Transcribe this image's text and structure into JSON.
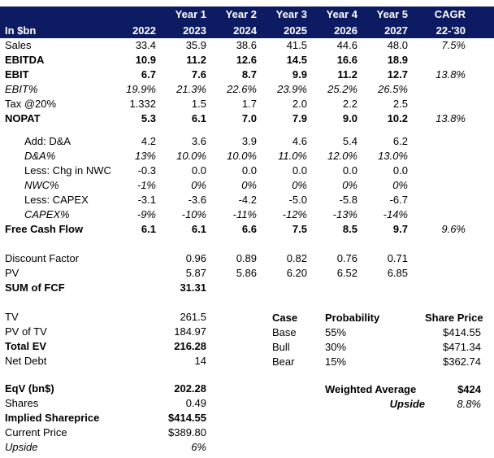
{
  "colors": {
    "header_bg": "#0D1B63",
    "header_text": "#FFFFFF"
  },
  "header": {
    "label": "In $bn",
    "year_row": [
      "Year 1",
      "Year 2",
      "Year 3",
      "Year 4",
      "Year 5",
      "CAGR"
    ],
    "period_row": [
      "2022",
      "2023",
      "2024",
      "2025",
      "2026",
      "2027",
      "22-'30"
    ]
  },
  "table": {
    "rows": [
      {
        "label": "Sales",
        "values": [
          "33.4",
          "35.9",
          "38.6",
          "41.5",
          "44.6",
          "48.0"
        ],
        "cagr": "7.5%",
        "bold": false,
        "italic": false,
        "indent": false,
        "gap_before": 0
      },
      {
        "label": "EBITDA",
        "values": [
          "10.9",
          "11.2",
          "12.6",
          "14.5",
          "16.6",
          "18.9"
        ],
        "cagr": "",
        "bold": true,
        "italic": false,
        "indent": false,
        "gap_before": 0
      },
      {
        "label": "EBIT",
        "values": [
          "6.7",
          "7.6",
          "8.7",
          "9.9",
          "11.2",
          "12.7"
        ],
        "cagr": "13.8%",
        "bold": true,
        "italic": false,
        "indent": false,
        "gap_before": 0
      },
      {
        "label": "EBIT%",
        "values": [
          "19.9%",
          "21.3%",
          "22.6%",
          "23.9%",
          "25.2%",
          "26.5%"
        ],
        "cagr": "",
        "bold": false,
        "italic": true,
        "indent": false,
        "gap_before": 0
      },
      {
        "label": "Tax @20%",
        "values": [
          "1.332",
          "1.5",
          "1.7",
          "2.0",
          "2.2",
          "2.5"
        ],
        "cagr": "",
        "bold": false,
        "italic": false,
        "indent": false,
        "gap_before": 0
      },
      {
        "label": "NOPAT",
        "values": [
          "5.3",
          "6.1",
          "7.0",
          "7.9",
          "9.0",
          "10.2"
        ],
        "cagr": "13.8%",
        "bold": true,
        "italic": false,
        "indent": false,
        "gap_before": 0
      },
      {
        "label": "Add: D&A",
        "values": [
          "4.2",
          "3.6",
          "3.9",
          "4.6",
          "5.4",
          "6.2"
        ],
        "cagr": "",
        "bold": false,
        "italic": false,
        "indent": true,
        "gap_before": 10
      },
      {
        "label": "D&A%",
        "values": [
          "13%",
          "10.0%",
          "10.0%",
          "11.0%",
          "12.0%",
          "13.0%"
        ],
        "cagr": "",
        "bold": false,
        "italic": true,
        "indent": true,
        "gap_before": 0
      },
      {
        "label": "Less: Chg in NWC",
        "values": [
          "-0.3",
          "0.0",
          "0.0",
          "0.0",
          "0.0",
          "0.0"
        ],
        "cagr": "",
        "bold": false,
        "italic": false,
        "indent": true,
        "gap_before": 0
      },
      {
        "label": "NWC%",
        "values": [
          "-1%",
          "0%",
          "0%",
          "0%",
          "0%",
          "0%"
        ],
        "cagr": "",
        "bold": false,
        "italic": true,
        "indent": true,
        "gap_before": 0
      },
      {
        "label": "Less: CAPEX",
        "values": [
          "-3.1",
          "-3.6",
          "-4.2",
          "-5.0",
          "-5.8",
          "-6.7"
        ],
        "cagr": "",
        "bold": false,
        "italic": false,
        "indent": true,
        "gap_before": 0
      },
      {
        "label": "CAPEX%",
        "values": [
          "-9%",
          "-10%",
          "-11%",
          "-12%",
          "-13%",
          "-14%"
        ],
        "cagr": "",
        "bold": false,
        "italic": true,
        "indent": true,
        "gap_before": 0
      },
      {
        "label": "Free Cash Flow",
        "values": [
          "6.1",
          "6.1",
          "6.6",
          "7.5",
          "8.5",
          "9.7"
        ],
        "cagr": "9.6%",
        "bold": true,
        "italic": false,
        "indent": false,
        "gap_before": 0
      },
      {
        "label": "Discount Factor",
        "values": [
          "",
          "0.96",
          "0.89",
          "0.82",
          "0.76",
          "0.71"
        ],
        "cagr": "",
        "bold": false,
        "italic": false,
        "indent": false,
        "gap_before": 18
      },
      {
        "label": "PV",
        "values": [
          "",
          "5.87",
          "5.86",
          "6.20",
          "6.52",
          "6.85"
        ],
        "cagr": "",
        "bold": false,
        "italic": false,
        "indent": false,
        "gap_before": 0
      },
      {
        "label": "SUM of FCF",
        "values": [
          "",
          "31.31",
          "",
          "",
          "",
          ""
        ],
        "cagr": "",
        "bold": true,
        "italic": false,
        "indent": false,
        "gap_before": 0
      },
      {
        "label": "TV",
        "values": [
          "",
          "261.5",
          "",
          "",
          "",
          ""
        ],
        "cagr": "",
        "bold": false,
        "italic": false,
        "indent": false,
        "gap_before": 18
      },
      {
        "label": "PV of TV",
        "values": [
          "",
          "184.97",
          "",
          "",
          "",
          ""
        ],
        "cagr": "",
        "bold": false,
        "italic": false,
        "indent": false,
        "gap_before": 0
      },
      {
        "label": "Total EV",
        "values": [
          "",
          "216.28",
          "",
          "",
          "",
          ""
        ],
        "cagr": "",
        "bold": true,
        "italic": false,
        "indent": false,
        "gap_before": 0
      },
      {
        "label": "Net Debt",
        "values": [
          "",
          "14",
          "",
          "",
          "",
          ""
        ],
        "cagr": "",
        "bold": false,
        "italic": false,
        "indent": false,
        "gap_before": 0
      },
      {
        "label": "EqV (bn$)",
        "values": [
          "",
          "202.28",
          "",
          "",
          "",
          ""
        ],
        "cagr": "",
        "bold": true,
        "italic": false,
        "indent": false,
        "gap_before": 16
      },
      {
        "label": "Shares",
        "values": [
          "",
          "0.49",
          "",
          "",
          "",
          ""
        ],
        "cagr": "",
        "bold": false,
        "italic": false,
        "indent": false,
        "gap_before": 0
      },
      {
        "label": "Implied Shareprice",
        "values": [
          "",
          "$414.55",
          "",
          "",
          "",
          ""
        ],
        "cagr": "",
        "bold": true,
        "italic": false,
        "indent": false,
        "gap_before": 0
      },
      {
        "label": "Current Price",
        "values": [
          "",
          "$389.80",
          "",
          "",
          "",
          ""
        ],
        "cagr": "",
        "bold": false,
        "italic": false,
        "indent": false,
        "gap_before": 0
      },
      {
        "label": "Upside",
        "values": [
          "",
          "6%",
          "",
          "",
          "",
          ""
        ],
        "cagr": "",
        "bold": false,
        "italic": true,
        "indent": false,
        "gap_before": 0
      }
    ]
  },
  "scenario_table": {
    "headers": [
      "Case",
      "Probability",
      "Share Price"
    ],
    "rows": [
      [
        "Base",
        "55%",
        "$414.55"
      ],
      [
        "Bull",
        "30%",
        "$471.34"
      ],
      [
        "Bear",
        "15%",
        "$362.74"
      ]
    ],
    "weighted_average_label": "Weighted Average",
    "weighted_average_value": "$424",
    "upside_label": "Upside",
    "upside_value": "8.8%"
  }
}
